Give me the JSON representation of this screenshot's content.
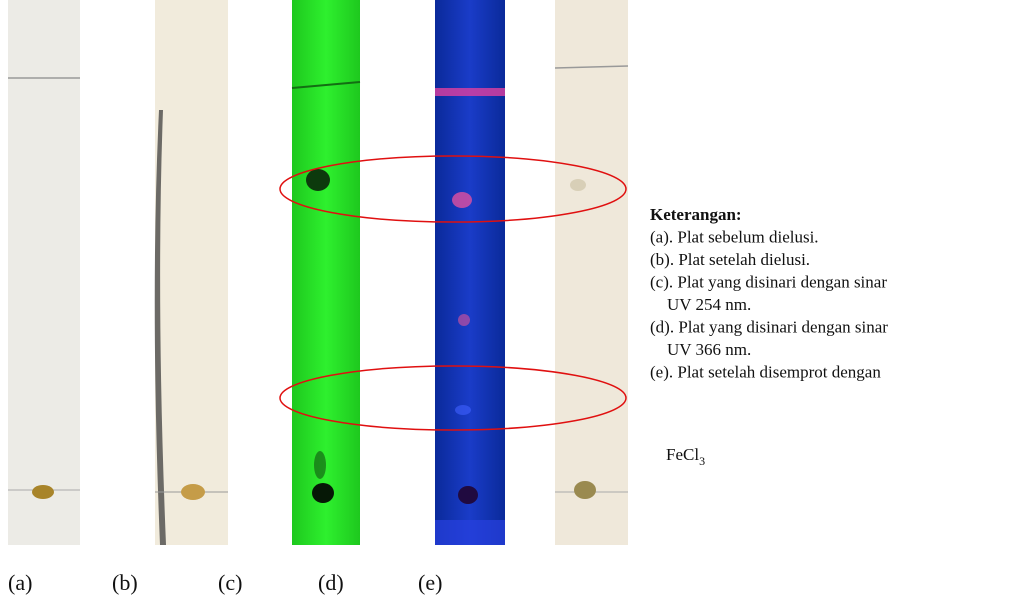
{
  "plate_labels": [
    "(a)",
    "(b)",
    "(c)",
    "(d)",
    "(e)"
  ],
  "legend": {
    "title": "Keterangan:",
    "items": [
      {
        "lines": [
          "(a). Plat sebelum dielusi."
        ]
      },
      {
        "lines": [
          "(b). Plat setelah dielusi."
        ]
      },
      {
        "lines": [
          "(c). Plat yang disinari dengan sinar",
          "UV 254 nm."
        ]
      },
      {
        "lines": [
          "(d). Plat yang disinari dengan sinar",
          "UV 366 nm."
        ]
      },
      {
        "lines": [
          "(e). Plat setelah disemprot dengan"
        ]
      }
    ],
    "formula": {
      "text": "FeCl",
      "sub": "3"
    }
  }
}
